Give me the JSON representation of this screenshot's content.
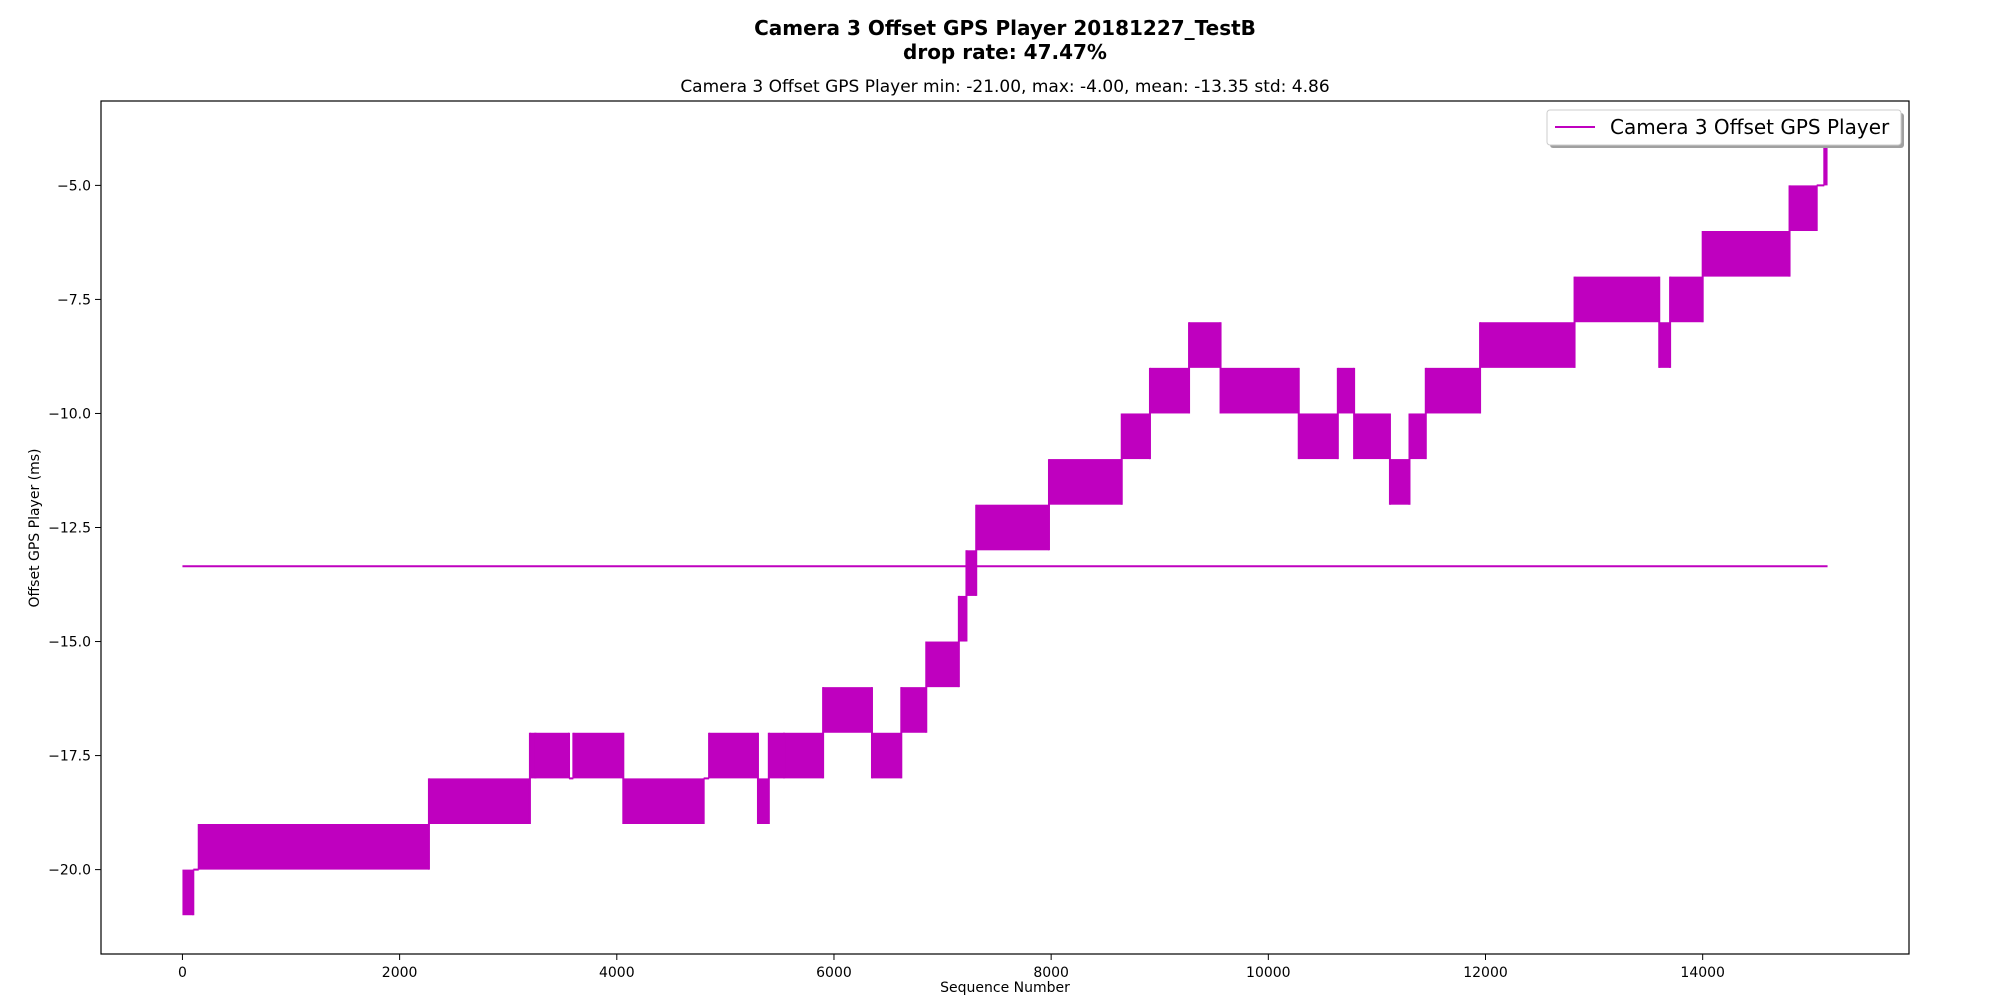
{
  "colors": {
    "series": "#bf00bf",
    "axes": "#000000",
    "background": "#ffffff"
  },
  "chart_data": {
    "type": "line",
    "title": "Camera 3 Offset GPS Player 20181227_TestB",
    "title_line2": "drop rate: 47.47%",
    "subtitle": "Camera 3 Offset GPS Player min: -21.00, max: -4.00, mean: -13.35 std: 4.86",
    "xlabel": "Sequence Number",
    "ylabel": "Offset GPS Player (ms)",
    "xlim": [
      -750,
      15900
    ],
    "ylim": [
      -21.85,
      -3.15
    ],
    "xticks": [
      0,
      2000,
      4000,
      6000,
      8000,
      10000,
      12000,
      14000
    ],
    "xtick_labels": [
      "0",
      "2000",
      "4000",
      "6000",
      "8000",
      "10000",
      "12000",
      "14000"
    ],
    "yticks": [
      -5.0,
      -7.5,
      -10.0,
      -12.5,
      -15.0,
      -17.5,
      -20.0
    ],
    "ytick_labels": [
      "−5.0",
      "−7.5",
      "−10.0",
      "−12.5",
      "−15.0",
      "−17.5",
      "−20.0"
    ],
    "grid": false,
    "legend": {
      "position": "top-right",
      "entries": [
        "Camera 3 Offset GPS Player"
      ]
    },
    "mean_line": {
      "value": -13.35,
      "x_range": [
        0,
        15150
      ]
    },
    "series": [
      {
        "name": "Camera 3 Offset GPS Player",
        "description": "oscillating offset; each segment fluctuates between value and value+1",
        "segments": [
          {
            "x": [
              0,
              100
            ],
            "low": -21,
            "high": -20
          },
          {
            "x": [
              100,
              150
            ],
            "low": -20,
            "high": -20
          },
          {
            "x": [
              150,
              2270
            ],
            "low": -20,
            "high": -19
          },
          {
            "x": [
              2270,
              3200
            ],
            "low": -19,
            "high": -18
          },
          {
            "x": [
              3200,
              3250
            ],
            "low": -18,
            "high": -17
          },
          {
            "x": [
              3250,
              3560
            ],
            "low": -18,
            "high": -17
          },
          {
            "x": [
              3560,
              3600
            ],
            "low": -18,
            "high": -18
          },
          {
            "x": [
              3600,
              4060
            ],
            "low": -18,
            "high": -17
          },
          {
            "x": [
              4060,
              4800
            ],
            "low": -19,
            "high": -18
          },
          {
            "x": [
              4800,
              4850
            ],
            "low": -18,
            "high": -18
          },
          {
            "x": [
              4850,
              5300
            ],
            "low": -18,
            "high": -17
          },
          {
            "x": [
              5300,
              5400
            ],
            "low": -19,
            "high": -18
          },
          {
            "x": [
              5400,
              5540
            ],
            "low": -18,
            "high": -17
          },
          {
            "x": [
              5540,
              5900
            ],
            "low": -18,
            "high": -17
          },
          {
            "x": [
              5900,
              6350
            ],
            "low": -17,
            "high": -16
          },
          {
            "x": [
              6350,
              6620
            ],
            "low": -18,
            "high": -17
          },
          {
            "x": [
              6620,
              6850
            ],
            "low": -17,
            "high": -16
          },
          {
            "x": [
              6850,
              7150
            ],
            "low": -16,
            "high": -15
          },
          {
            "x": [
              7150,
              7220
            ],
            "low": -15,
            "high": -14
          },
          {
            "x": [
              7220,
              7310
            ],
            "low": -14,
            "high": -13
          },
          {
            "x": [
              7310,
              7980
            ],
            "low": -13,
            "high": -12
          },
          {
            "x": [
              7980,
              8650
            ],
            "low": -12,
            "high": -11
          },
          {
            "x": [
              8650,
              8910
            ],
            "low": -11,
            "high": -10
          },
          {
            "x": [
              8910,
              9270
            ],
            "low": -10,
            "high": -9
          },
          {
            "x": [
              9270,
              9560
            ],
            "low": -9,
            "high": -8
          },
          {
            "x": [
              9560,
              10280
            ],
            "low": -10,
            "high": -9
          },
          {
            "x": [
              10280,
              10640
            ],
            "low": -11,
            "high": -10
          },
          {
            "x": [
              10640,
              10790
            ],
            "low": -10,
            "high": -9
          },
          {
            "x": [
              10790,
              11120
            ],
            "low": -11,
            "high": -10
          },
          {
            "x": [
              11120,
              11300
            ],
            "low": -12,
            "high": -11
          },
          {
            "x": [
              11300,
              11450
            ],
            "low": -11,
            "high": -10
          },
          {
            "x": [
              11450,
              11950
            ],
            "low": -10,
            "high": -9
          },
          {
            "x": [
              11950,
              12820
            ],
            "low": -9,
            "high": -8
          },
          {
            "x": [
              12820,
              13600
            ],
            "low": -8,
            "high": -7
          },
          {
            "x": [
              13600,
              13700
            ],
            "low": -9,
            "high": -8
          },
          {
            "x": [
              13700,
              14000
            ],
            "low": -8,
            "high": -7
          },
          {
            "x": [
              14000,
              14800
            ],
            "low": -7,
            "high": -6
          },
          {
            "x": [
              14800,
              15050
            ],
            "low": -6,
            "high": -5
          },
          {
            "x": [
              15050,
              15120
            ],
            "low": -5,
            "high": -5
          },
          {
            "x": [
              15120,
              15150
            ],
            "low": -5,
            "high": -4
          }
        ]
      }
    ]
  }
}
